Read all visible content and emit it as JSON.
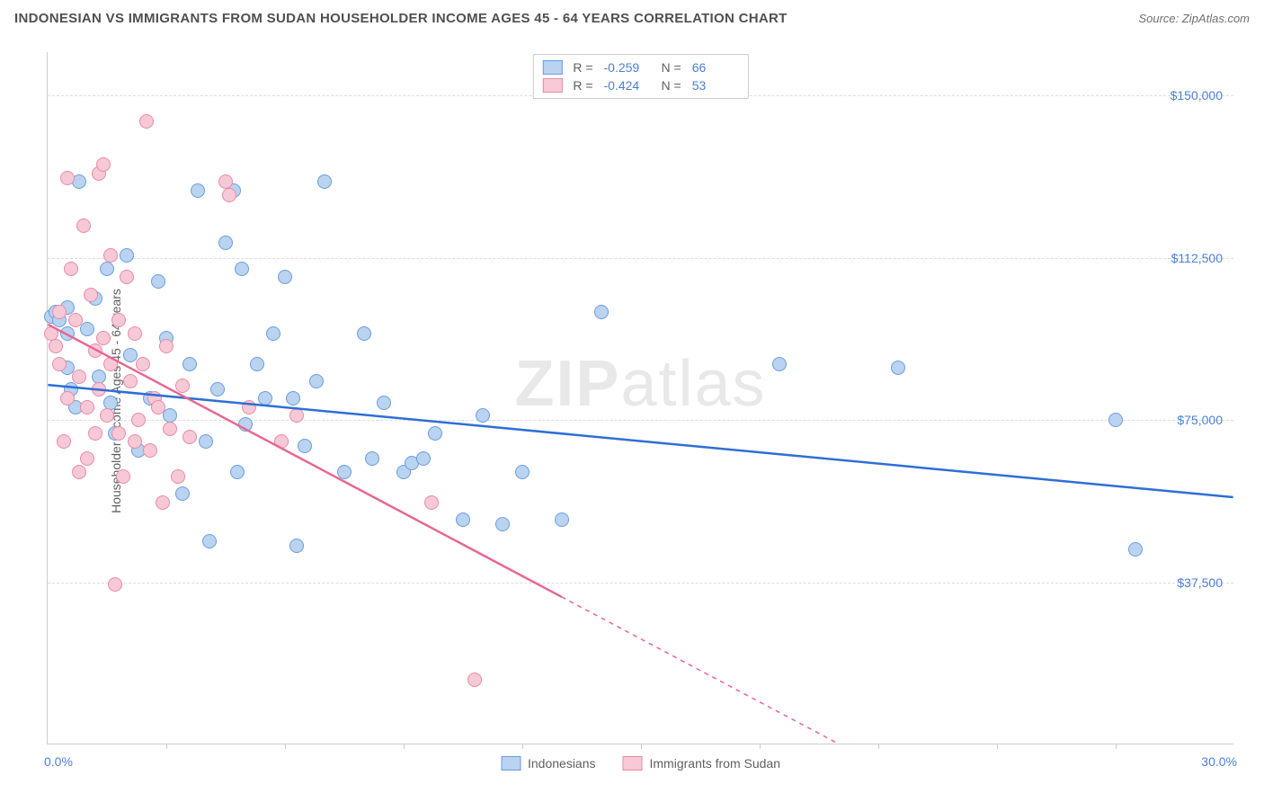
{
  "title": "INDONESIAN VS IMMIGRANTS FROM SUDAN HOUSEHOLDER INCOME AGES 45 - 64 YEARS CORRELATION CHART",
  "source": "Source: ZipAtlas.com",
  "ylabel": "Householder Income Ages 45 - 64 years",
  "watermark_a": "ZIP",
  "watermark_b": "atlas",
  "chart": {
    "type": "scatter",
    "xlim": [
      0,
      30
    ],
    "ylim": [
      0,
      160000
    ],
    "x_tick_step": 3,
    "x_min_label": "0.0%",
    "x_max_label": "30.0%",
    "y_ticks": [
      37500,
      75000,
      112500,
      150000
    ],
    "y_tick_labels": [
      "$37,500",
      "$75,000",
      "$112,500",
      "$150,000"
    ],
    "grid_color": "#dddddd",
    "axis_color": "#cccccc",
    "background_color": "#ffffff"
  },
  "series": [
    {
      "name": "Indonesians",
      "label": "Indonesians",
      "fill": "#b9d3f0",
      "stroke": "#6a9de0",
      "line_color": "#2d6fd6",
      "R": "-0.259",
      "N": "66",
      "regression": {
        "x1": 0,
        "y1": 83000,
        "x2": 30,
        "y2": 57000,
        "solid_until_x": 30
      },
      "points": [
        [
          0.1,
          99000
        ],
        [
          0.2,
          100000
        ],
        [
          0.3,
          98000
        ],
        [
          0.5,
          101000
        ],
        [
          0.5,
          95000
        ],
        [
          0.5,
          87000
        ],
        [
          0.6,
          82000
        ],
        [
          0.7,
          78000
        ],
        [
          0.8,
          130000
        ],
        [
          1.0,
          96000
        ],
        [
          1.2,
          103000
        ],
        [
          1.3,
          85000
        ],
        [
          1.5,
          110000
        ],
        [
          1.6,
          79000
        ],
        [
          1.7,
          72000
        ],
        [
          2.0,
          113000
        ],
        [
          2.1,
          90000
        ],
        [
          2.3,
          68000
        ],
        [
          2.6,
          80000
        ],
        [
          2.8,
          107000
        ],
        [
          3.0,
          94000
        ],
        [
          3.1,
          76000
        ],
        [
          3.4,
          58000
        ],
        [
          3.6,
          88000
        ],
        [
          3.8,
          128000
        ],
        [
          4.0,
          70000
        ],
        [
          4.1,
          47000
        ],
        [
          4.3,
          82000
        ],
        [
          4.5,
          116000
        ],
        [
          4.7,
          128000
        ],
        [
          4.8,
          63000
        ],
        [
          4.9,
          110000
        ],
        [
          5.0,
          74000
        ],
        [
          5.3,
          88000
        ],
        [
          5.5,
          80000
        ],
        [
          5.7,
          95000
        ],
        [
          6.0,
          108000
        ],
        [
          6.2,
          80000
        ],
        [
          6.3,
          46000
        ],
        [
          6.5,
          69000
        ],
        [
          6.8,
          84000
        ],
        [
          7.0,
          130000
        ],
        [
          7.5,
          63000
        ],
        [
          8.0,
          95000
        ],
        [
          8.2,
          66000
        ],
        [
          8.5,
          79000
        ],
        [
          9.0,
          63000
        ],
        [
          9.2,
          65000
        ],
        [
          9.5,
          66000
        ],
        [
          9.8,
          72000
        ],
        [
          10.5,
          52000
        ],
        [
          11.0,
          76000
        ],
        [
          11.5,
          51000
        ],
        [
          12.0,
          63000
        ],
        [
          13.0,
          52000
        ],
        [
          14.0,
          100000
        ],
        [
          18.5,
          88000
        ],
        [
          21.5,
          87000
        ],
        [
          27.0,
          75000
        ],
        [
          27.5,
          45000
        ]
      ]
    },
    {
      "name": "Immigrants from Sudan",
      "label": "Immigrants from Sudan",
      "fill": "#f7c9d6",
      "stroke": "#ea89a6",
      "line_color": "#e86693",
      "R": "-0.424",
      "N": "53",
      "regression": {
        "x1": 0,
        "y1": 97000,
        "x2": 20,
        "y2": 0,
        "solid_until_x": 13
      },
      "points": [
        [
          0.1,
          95000
        ],
        [
          0.2,
          92000
        ],
        [
          0.3,
          100000
        ],
        [
          0.3,
          88000
        ],
        [
          0.4,
          70000
        ],
        [
          0.5,
          131000
        ],
        [
          0.5,
          80000
        ],
        [
          0.6,
          110000
        ],
        [
          0.7,
          98000
        ],
        [
          0.8,
          63000
        ],
        [
          0.8,
          85000
        ],
        [
          0.9,
          120000
        ],
        [
          1.0,
          78000
        ],
        [
          1.0,
          66000
        ],
        [
          1.1,
          104000
        ],
        [
          1.2,
          91000
        ],
        [
          1.2,
          72000
        ],
        [
          1.3,
          132000
        ],
        [
          1.3,
          82000
        ],
        [
          1.4,
          134000
        ],
        [
          1.4,
          94000
        ],
        [
          1.5,
          76000
        ],
        [
          1.6,
          113000
        ],
        [
          1.6,
          88000
        ],
        [
          1.7,
          37000
        ],
        [
          1.8,
          98000
        ],
        [
          1.8,
          72000
        ],
        [
          1.9,
          62000
        ],
        [
          2.0,
          108000
        ],
        [
          2.1,
          84000
        ],
        [
          2.2,
          95000
        ],
        [
          2.2,
          70000
        ],
        [
          2.3,
          75000
        ],
        [
          2.4,
          88000
        ],
        [
          2.5,
          144000
        ],
        [
          2.6,
          68000
        ],
        [
          2.7,
          80000
        ],
        [
          2.8,
          78000
        ],
        [
          2.9,
          56000
        ],
        [
          3.0,
          92000
        ],
        [
          3.1,
          73000
        ],
        [
          3.3,
          62000
        ],
        [
          3.4,
          83000
        ],
        [
          3.6,
          71000
        ],
        [
          4.5,
          130000
        ],
        [
          4.6,
          127000
        ],
        [
          5.1,
          78000
        ],
        [
          5.9,
          70000
        ],
        [
          6.3,
          76000
        ],
        [
          9.7,
          56000
        ],
        [
          10.8,
          15000
        ]
      ]
    }
  ],
  "legend_stats_labels": {
    "R": "R =",
    "N": "N ="
  }
}
